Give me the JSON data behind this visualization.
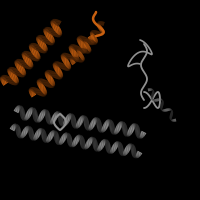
{
  "background_color": "#000000",
  "figsize": [
    2.0,
    2.0
  ],
  "dpi": 100,
  "orange_color": "#c86010",
  "gray_color": "#909090",
  "gray_dark": "#505050",
  "orange_dark": "#7a3808"
}
